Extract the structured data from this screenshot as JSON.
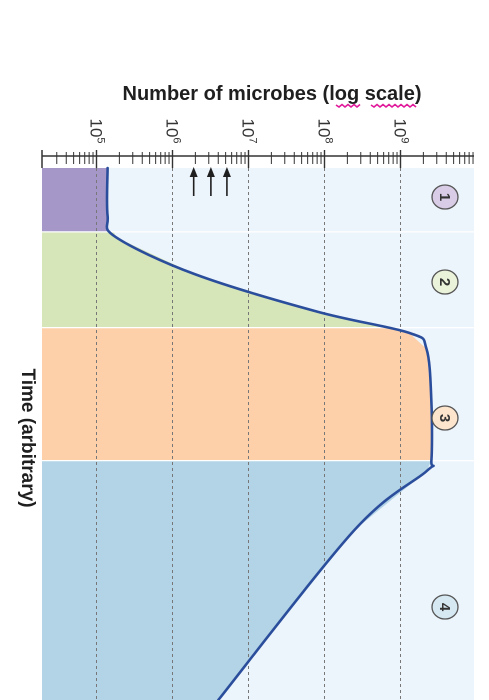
{
  "chart_data": {
    "type": "line",
    "title": "",
    "ylabel": "Number of microbes (log scale)",
    "y_label_segments": [
      "Number of microbes (",
      "log",
      " ",
      "scale",
      ")"
    ],
    "xlabel": "Time (arbitrary)",
    "x_axis": {
      "label": "Time (arbitrary)",
      "ticks": "none",
      "range": [
        0,
        100
      ]
    },
    "y_axis": {
      "scale": "log",
      "range": [
        40000,
        4000000000
      ],
      "ticks": [
        {
          "value": 100000,
          "mantissa": "10",
          "exponent": "5"
        },
        {
          "value": 1000000,
          "mantissa": "10",
          "exponent": "6"
        },
        {
          "value": 10000000,
          "mantissa": "10",
          "exponent": "7"
        },
        {
          "value": 100000000,
          "mantissa": "10",
          "exponent": "8"
        },
        {
          "value": 1000000000,
          "mantissa": "10",
          "exponent": "9"
        }
      ]
    },
    "grid": true,
    "orientation": "rotated 90 degrees clockwise (time runs down the page)",
    "phases": [
      {
        "label": "1",
        "start": 0,
        "end": 12,
        "fill": "#a598c9",
        "badge": "#d8cce6"
      },
      {
        "label": "2",
        "start": 12,
        "end": 30,
        "fill": "#d6e6b9",
        "badge": "#eaf2d9"
      },
      {
        "label": "3",
        "start": 30,
        "end": 55,
        "fill": "#fdd0aa",
        "badge": "#fde4cd"
      },
      {
        "label": "4",
        "start": 55,
        "end": 100,
        "fill": "#b3d4e6",
        "badge": "#d6e9f3"
      }
    ],
    "series": [
      {
        "values": [
          {
            "x": 0,
            "y": 140000
          },
          {
            "x": 9,
            "y": 140000
          },
          {
            "x": 13,
            "y": 180000
          },
          {
            "x": 20,
            "y": 2000000
          },
          {
            "x": 27,
            "y": 80000000
          },
          {
            "x": 31,
            "y": 1300000000
          },
          {
            "x": 34,
            "y": 2200000000
          },
          {
            "x": 44,
            "y": 2550000000
          },
          {
            "x": 55,
            "y": 2550000000
          },
          {
            "x": 57,
            "y": 2200000000
          },
          {
            "x": 68,
            "y": 250000000
          },
          {
            "x": 100,
            "y": 4000000
          }
        ]
      }
    ],
    "annotations": [
      {
        "type": "arrow",
        "y": 1900000,
        "direction": "toward higher counts"
      },
      {
        "type": "arrow",
        "y": 3200000,
        "direction": "toward higher counts"
      },
      {
        "type": "arrow",
        "y": 5200000,
        "direction": "toward higher counts"
      }
    ],
    "colors": {
      "curve": "#2b4e9c",
      "plot_background": "#edf5fc",
      "grid": "#777777",
      "axis": "#333333",
      "underline": "#e0189a"
    }
  }
}
